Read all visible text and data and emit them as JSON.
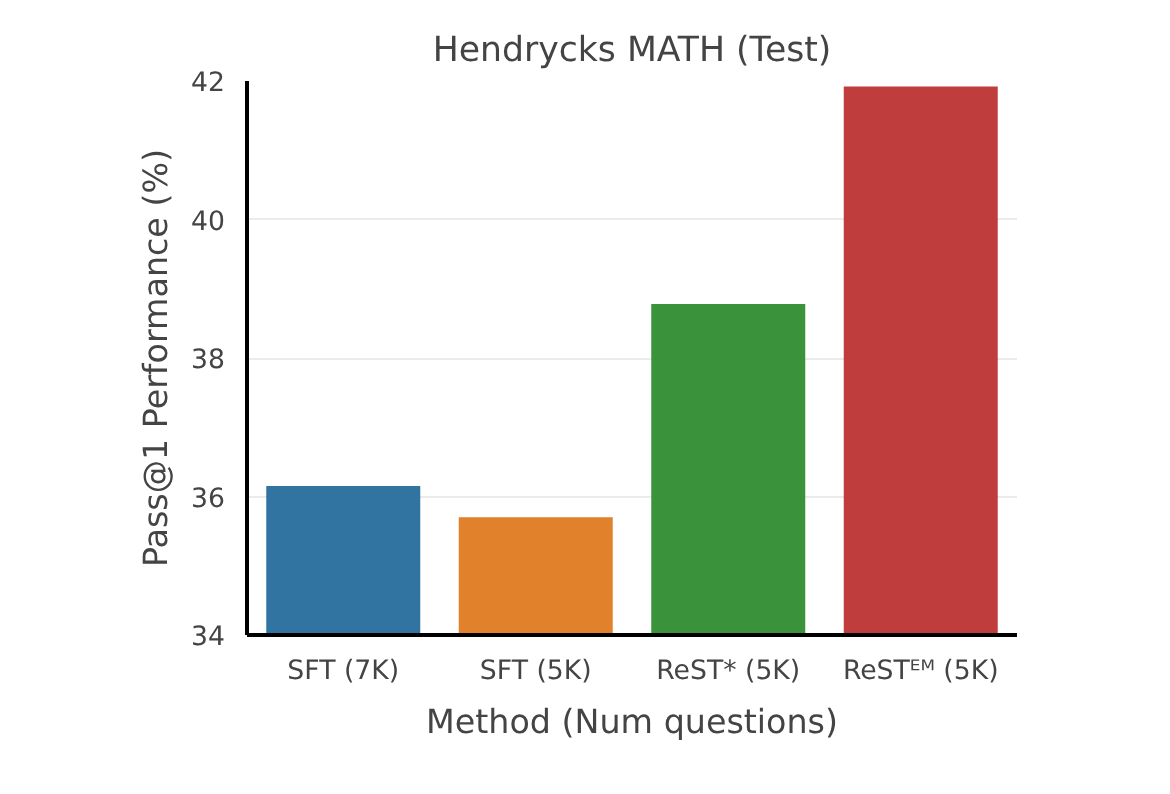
{
  "chart_data": {
    "type": "bar",
    "title": "Hendrycks MATH (Test)",
    "xlabel": "Method (Num questions)",
    "ylabel": "Pass@1 Performance (%)",
    "categories": [
      "SFT (7K)",
      "SFT (5K)",
      "ReST* (5K)",
      "ReSTᴱᴹ (5K)"
    ],
    "values": [
      36.15,
      35.7,
      38.78,
      41.92
    ],
    "colors": [
      "#3274a1",
      "#e1812c",
      "#3a923a",
      "#c03d3e"
    ],
    "ylim": [
      34,
      42
    ],
    "yticks": [
      34,
      36,
      38,
      40,
      42
    ],
    "grid": "y"
  }
}
